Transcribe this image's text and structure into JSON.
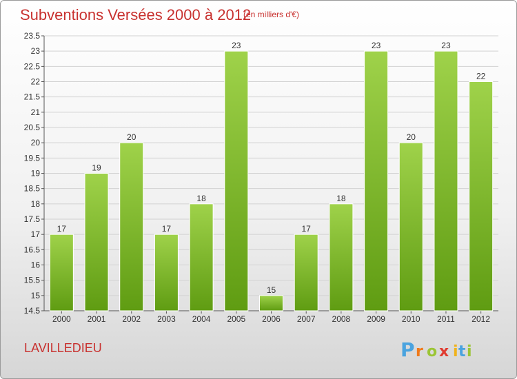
{
  "header": {
    "title": "Subventions Versées 2000 à 2012",
    "unit": "(en milliers d'€)"
  },
  "footer": {
    "place": "LAVILLEDIEU",
    "logo_text": "Proxiti",
    "logo_letters": [
      "P",
      "r",
      "o",
      "x",
      "i",
      "t",
      "i"
    ],
    "logo_colors": [
      "#4aa3df",
      "#f07a1a",
      "#9bc535",
      "#e03a2f",
      "#f0b21a",
      "#4aa3df",
      "#9bc535"
    ]
  },
  "colors": {
    "bar_top": "#9fd24a",
    "bar_bottom": "#5f9c12",
    "grid": "#d2d2d2",
    "accent": "#c8312f"
  },
  "chart_data": {
    "type": "bar",
    "title": "Subventions Versées 2000 à 2012",
    "subtitle": "(en milliers d'€)",
    "xlabel": "",
    "ylabel": "",
    "categories": [
      "2000",
      "2001",
      "2002",
      "2003",
      "2004",
      "2005",
      "2006",
      "2007",
      "2008",
      "2009",
      "2010",
      "2011",
      "2012"
    ],
    "values": [
      17,
      19,
      20,
      17,
      18,
      23,
      15,
      17,
      18,
      23,
      20,
      23,
      22
    ],
    "ylim": [
      14.5,
      23.5
    ],
    "yticks": [
      "14.5",
      "15",
      "15.5",
      "16",
      "16.5",
      "17",
      "17.5",
      "18",
      "18.5",
      "19",
      "19.5",
      "20",
      "20.5",
      "21",
      "21.5",
      "22",
      "22.5",
      "23",
      "23.5"
    ],
    "grid": true,
    "legend": "none"
  }
}
